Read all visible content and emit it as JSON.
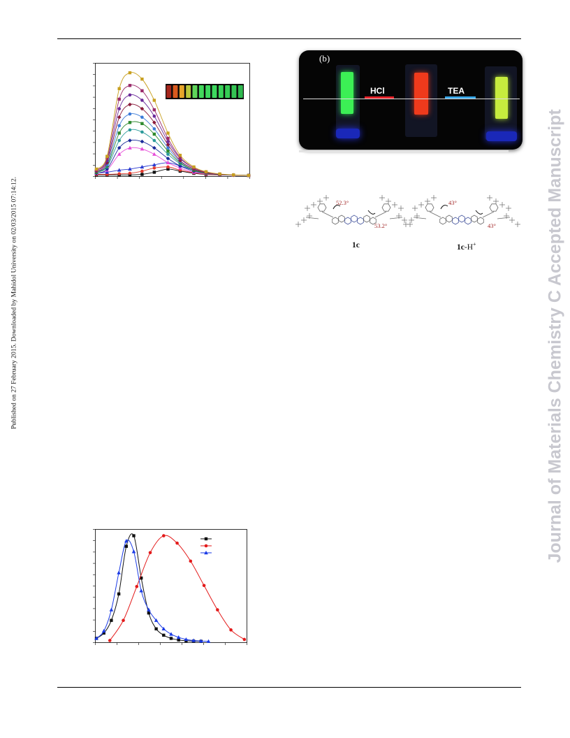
{
  "sidebar": {
    "left_note": "Published on 27 February 2015. Downloaded by Mahidol University on 02/03/2015 07:14:12.",
    "right_watermark": "Journal of Materials Chemistry C Accepted Manuscript"
  },
  "photo_panel": {
    "panel_label": "(b)",
    "acid_label": "HCl",
    "base_label": "TEA"
  },
  "structures": {
    "left_compound": "1c",
    "right_compound_name": "1c",
    "right_compound_suffix": "-H",
    "right_compound_charge": "+",
    "left_angle_top": "52.3°",
    "left_angle_bottom": "53.2°",
    "right_angle_top": "43°",
    "right_angle_bottom": "43°"
  },
  "colors": {
    "accent_red": "#e5232a",
    "accent_blue": "#39a8e8",
    "watermark": "#c8c8cf"
  },
  "chart_data": [
    {
      "type": "line",
      "title": "",
      "xlabel": "",
      "ylabel": "",
      "xlim": [
        0,
        10
      ],
      "ylim": [
        0,
        1.05
      ],
      "grid": false,
      "legend": "none",
      "inset": "emission color swatches (red to green), top-right",
      "inset_swatches": [
        "#a5261c",
        "#d95a1e",
        "#e6a52a",
        "#b9c63a",
        "#5fd45a",
        "#42d85c",
        "#3dd85e",
        "#3dd85e",
        "#3ad259",
        "#36cc55",
        "#34c453",
        "#2fb84f"
      ],
      "x": [
        0,
        0.7,
        1.5,
        2.2,
        3.0,
        3.8,
        4.7,
        5.5,
        6.4,
        7.2,
        8.1,
        9.0,
        10.0
      ],
      "series": [
        {
          "color": "#111111",
          "values": [
            0.005,
            0.005,
            0.005,
            0.005,
            0.01,
            0.03,
            0.06,
            0.04,
            0.02,
            0.008,
            0.004,
            0.002,
            0.0
          ]
        },
        {
          "color": "#e03a2e",
          "values": [
            0.01,
            0.01,
            0.015,
            0.02,
            0.04,
            0.07,
            0.08,
            0.05,
            0.025,
            0.01,
            0.005,
            0.002,
            0.0
          ]
        },
        {
          "color": "#2a3ad0",
          "values": [
            0.02,
            0.03,
            0.05,
            0.06,
            0.08,
            0.1,
            0.12,
            0.09,
            0.05,
            0.02,
            0.008,
            0.003,
            0.0
          ]
        },
        {
          "color": "#e64bd8",
          "values": [
            0.02,
            0.05,
            0.2,
            0.26,
            0.25,
            0.2,
            0.12,
            0.07,
            0.03,
            0.015,
            0.006,
            0.002,
            0.0
          ]
        },
        {
          "color": "#1a2a9a",
          "values": [
            0.02,
            0.06,
            0.26,
            0.33,
            0.32,
            0.26,
            0.16,
            0.09,
            0.04,
            0.02,
            0.008,
            0.003,
            0.0
          ]
        },
        {
          "color": "#2a9a9a",
          "values": [
            0.03,
            0.08,
            0.33,
            0.43,
            0.41,
            0.33,
            0.2,
            0.11,
            0.05,
            0.02,
            0.008,
            0.003,
            0.0
          ]
        },
        {
          "color": "#2e8a2e",
          "values": [
            0.03,
            0.09,
            0.4,
            0.5,
            0.49,
            0.39,
            0.23,
            0.12,
            0.05,
            0.02,
            0.008,
            0.003,
            0.0
          ]
        },
        {
          "color": "#3a7ad8",
          "values": [
            0.04,
            0.1,
            0.47,
            0.58,
            0.55,
            0.44,
            0.26,
            0.13,
            0.06,
            0.025,
            0.01,
            0.003,
            0.0
          ]
        },
        {
          "color": "#8a1a3a",
          "values": [
            0.04,
            0.12,
            0.55,
            0.67,
            0.63,
            0.5,
            0.29,
            0.14,
            0.06,
            0.025,
            0.01,
            0.003,
            0.0
          ]
        },
        {
          "color": "#6a2a9a",
          "values": [
            0.05,
            0.14,
            0.63,
            0.76,
            0.71,
            0.56,
            0.32,
            0.16,
            0.07,
            0.03,
            0.01,
            0.004,
            0.0
          ]
        },
        {
          "color": "#9a2a6a",
          "values": [
            0.05,
            0.16,
            0.72,
            0.85,
            0.8,
            0.62,
            0.35,
            0.17,
            0.07,
            0.03,
            0.012,
            0.004,
            0.0
          ]
        },
        {
          "color": "#c8a020",
          "values": [
            0.06,
            0.18,
            0.82,
            0.97,
            0.91,
            0.71,
            0.4,
            0.19,
            0.08,
            0.035,
            0.014,
            0.005,
            0.0
          ]
        }
      ]
    },
    {
      "type": "line",
      "title": "",
      "xlabel": "",
      "ylabel": "",
      "xlim": [
        0,
        10
      ],
      "ylim": [
        0,
        1.05
      ],
      "grid": false,
      "legend": "top-right",
      "series": [
        {
          "color": "#111111",
          "marker": "square",
          "x": [
            0,
            0.5,
            1.0,
            1.5,
            2.0,
            2.5,
            3.0,
            3.5,
            4.0,
            4.5,
            5.0,
            5.5,
            6.0,
            6.5,
            7.0
          ],
          "values": [
            0.03,
            0.08,
            0.2,
            0.45,
            0.9,
            1.0,
            0.6,
            0.27,
            0.12,
            0.06,
            0.03,
            0.015,
            0.008,
            0.004,
            0.002
          ]
        },
        {
          "color": "#e31a1a",
          "marker": "circle",
          "x": [
            0.9,
            1.8,
            2.7,
            3.6,
            4.5,
            5.4,
            6.3,
            7.2,
            8.1,
            9.0,
            9.9
          ],
          "values": [
            0.01,
            0.2,
            0.52,
            0.84,
            1.0,
            0.93,
            0.76,
            0.53,
            0.3,
            0.11,
            0.02
          ]
        },
        {
          "color": "#1a3ae6",
          "marker": "triangle",
          "x": [
            0,
            0.5,
            1.0,
            1.5,
            2.0,
            2.5,
            3.0,
            3.5,
            4.0,
            4.5,
            5.0,
            5.5,
            6.0,
            6.5,
            7.0,
            7.5
          ],
          "values": [
            0.03,
            0.1,
            0.3,
            0.65,
            0.95,
            0.85,
            0.48,
            0.3,
            0.2,
            0.12,
            0.07,
            0.04,
            0.02,
            0.01,
            0.005,
            0.002
          ]
        }
      ]
    }
  ]
}
